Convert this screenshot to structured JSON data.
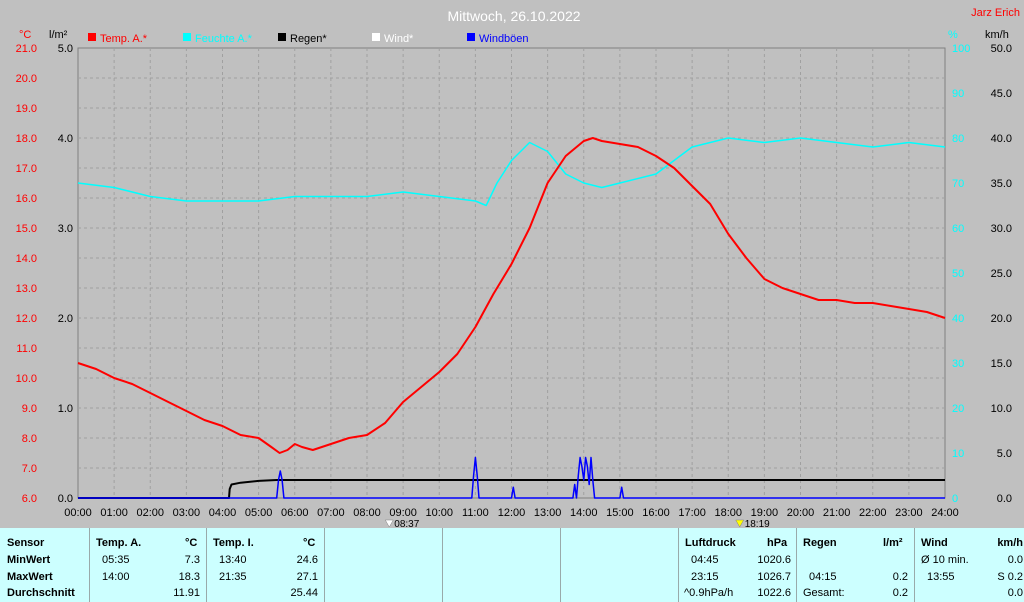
{
  "header": {
    "title": "Mittwoch, 26.10.2022",
    "author": "Jarz Erich"
  },
  "units": {
    "left_temp": "°C",
    "left_rain": "l/m²",
    "right_pct": "%",
    "right_wind": "km/h"
  },
  "legend": [
    {
      "label": "Temp. A.*",
      "color": "#ff0000"
    },
    {
      "label": "Feuchte A.*",
      "color": "#00ffff"
    },
    {
      "label": "Regen*",
      "color": "#000000"
    },
    {
      "label": "Wind*",
      "color": "#ffffff"
    },
    {
      "label": "Windböen",
      "color": "#0000ff"
    }
  ],
  "markers": {
    "sunrise": "08:37",
    "sunset": "18:19"
  },
  "chart_data": {
    "type": "line",
    "title": "Mittwoch, 26.10.2022",
    "x_ticks": [
      "00:00",
      "01:00",
      "02:00",
      "03:00",
      "04:00",
      "05:00",
      "06:00",
      "07:00",
      "08:00",
      "09:00",
      "10:00",
      "11:00",
      "12:00",
      "13:00",
      "14:00",
      "15:00",
      "16:00",
      "17:00",
      "18:00",
      "19:00",
      "20:00",
      "21:00",
      "22:00",
      "23:00",
      "24:00"
    ],
    "axes": {
      "temp_c": {
        "min": 6.0,
        "max": 21.0,
        "ticks": [
          "6.0",
          "7.0",
          "8.0",
          "9.0",
          "10.0",
          "11.0",
          "12.0",
          "13.0",
          "14.0",
          "15.0",
          "16.0",
          "17.0",
          "18.0",
          "19.0",
          "20.0",
          "21.0"
        ]
      },
      "rain_lm2": {
        "min": 0.0,
        "max": 5.0,
        "ticks": [
          "0.0",
          "1.0",
          "2.0",
          "3.0",
          "4.0",
          "5.0"
        ]
      },
      "humidity_pct": {
        "min": 0,
        "max": 100,
        "ticks": [
          "0",
          "10",
          "20",
          "30",
          "40",
          "50",
          "60",
          "70",
          "80",
          "90",
          "100"
        ]
      },
      "wind_kmh": {
        "min": 0.0,
        "max": 50.0,
        "ticks": [
          "0.0",
          "5.0",
          "10.0",
          "15.0",
          "20.0",
          "25.0",
          "30.0",
          "35.0",
          "40.0",
          "45.0",
          "50.0"
        ]
      }
    },
    "grid": true,
    "series": [
      {
        "name": "Temp. A.*",
        "axis": "temp_c",
        "color": "#ff0000",
        "x": [
          0,
          0.5,
          1,
          1.5,
          2,
          2.5,
          3,
          3.5,
          4,
          4.5,
          5,
          5.35,
          5.58,
          5.8,
          6,
          6.2,
          6.5,
          7,
          7.5,
          8,
          8.5,
          9,
          9.5,
          10,
          10.5,
          11,
          11.5,
          12,
          12.5,
          13,
          13.5,
          14,
          14.25,
          14.5,
          15,
          15.5,
          16,
          16.5,
          17,
          17.5,
          18,
          18.5,
          19,
          19.5,
          20,
          20.5,
          21,
          21.5,
          22,
          22.5,
          23,
          23.5,
          24
        ],
        "y": [
          10.5,
          10.3,
          10.0,
          9.8,
          9.5,
          9.2,
          8.9,
          8.6,
          8.4,
          8.1,
          8.0,
          7.7,
          7.5,
          7.6,
          7.8,
          7.7,
          7.6,
          7.8,
          8.0,
          8.1,
          8.5,
          9.2,
          9.7,
          10.2,
          10.8,
          11.7,
          12.8,
          13.8,
          15.0,
          16.5,
          17.4,
          17.9,
          18.0,
          17.9,
          17.8,
          17.7,
          17.4,
          17.0,
          16.4,
          15.8,
          14.8,
          14.0,
          13.3,
          13.0,
          12.8,
          12.6,
          12.6,
          12.5,
          12.5,
          12.4,
          12.3,
          12.2,
          12.0
        ]
      },
      {
        "name": "Feuchte A.*",
        "axis": "humidity_pct",
        "color": "#00ffff",
        "x": [
          0,
          1,
          2,
          3,
          4,
          5,
          6,
          7,
          8,
          9,
          10,
          11,
          11.3,
          11.6,
          12,
          12.5,
          13,
          13.5,
          14,
          14.5,
          15,
          16,
          17,
          18,
          19,
          20,
          21,
          22,
          23,
          24
        ],
        "y": [
          70,
          69,
          67,
          66,
          66,
          66,
          67,
          67,
          67,
          68,
          67,
          66,
          65,
          70,
          75,
          79,
          77,
          72,
          70,
          69,
          70,
          72,
          78,
          80,
          79,
          80,
          79,
          78,
          79,
          78
        ]
      },
      {
        "name": "Regen*",
        "axis": "rain_lm2",
        "color": "#000000",
        "x": [
          0,
          4.18,
          4.2,
          4.25,
          4.5,
          5,
          5.5,
          6,
          24
        ],
        "y": [
          0,
          0,
          0.1,
          0.15,
          0.17,
          0.19,
          0.2,
          0.2,
          0.2
        ]
      },
      {
        "name": "Windböen",
        "axis": "wind_kmh",
        "color": "#0000ff",
        "x": [
          0,
          5.5,
          5.55,
          5.6,
          5.65,
          5.7,
          10.9,
          10.95,
          11,
          11.05,
          11.1,
          12.0,
          12.05,
          12.1,
          13.7,
          13.75,
          13.8,
          13.85,
          13.9,
          13.95,
          14.0,
          14.05,
          14.1,
          14.15,
          14.2,
          14.25,
          14.3,
          15.0,
          15.05,
          15.1,
          24
        ],
        "y": [
          0,
          0,
          2.0,
          3.0,
          2.0,
          0,
          0,
          2.5,
          4.5,
          2.5,
          0,
          0,
          1.2,
          0,
          0,
          1.5,
          0,
          2.5,
          4.5,
          3.5,
          2.0,
          4.5,
          3.5,
          1.5,
          4.5,
          2.0,
          0,
          0,
          1.2,
          0,
          0
        ]
      }
    ]
  },
  "table": {
    "row_labels": [
      "Sensor",
      "MinWert",
      "MaxWert",
      "Durchschnitt"
    ],
    "temp_a": {
      "header": "Temp. A.",
      "unit": "°C",
      "min_time": "05:35",
      "min_val": "7.3",
      "max_time": "14:00",
      "max_val": "18.3",
      "avg": "11.91"
    },
    "temp_i": {
      "header": "Temp. I.",
      "unit": "°C",
      "min_time": "13:40",
      "min_val": "24.6",
      "max_time": "21:35",
      "max_val": "27.1",
      "avg": "25.44"
    },
    "luftdruck": {
      "header": "Luftdruck",
      "unit": "hPa",
      "min_time": "04:45",
      "min_val": "1020.6",
      "max_time": "23:15",
      "max_val": "1026.7",
      "avg_label": "^0.9hPa/h",
      "avg": "1022.6"
    },
    "regen": {
      "header": "Regen",
      "unit": "l/m²",
      "max_time": "04:15",
      "max_val": "0.2",
      "total_label": "Gesamt:",
      "total": "0.2"
    },
    "wind": {
      "header": "Wind",
      "unit": "km/h",
      "min_label": "Ø 10 min.",
      "min_val": "0.0",
      "max_time": "13:55",
      "max_val": "S 0.2",
      "avg": "0.0"
    }
  }
}
